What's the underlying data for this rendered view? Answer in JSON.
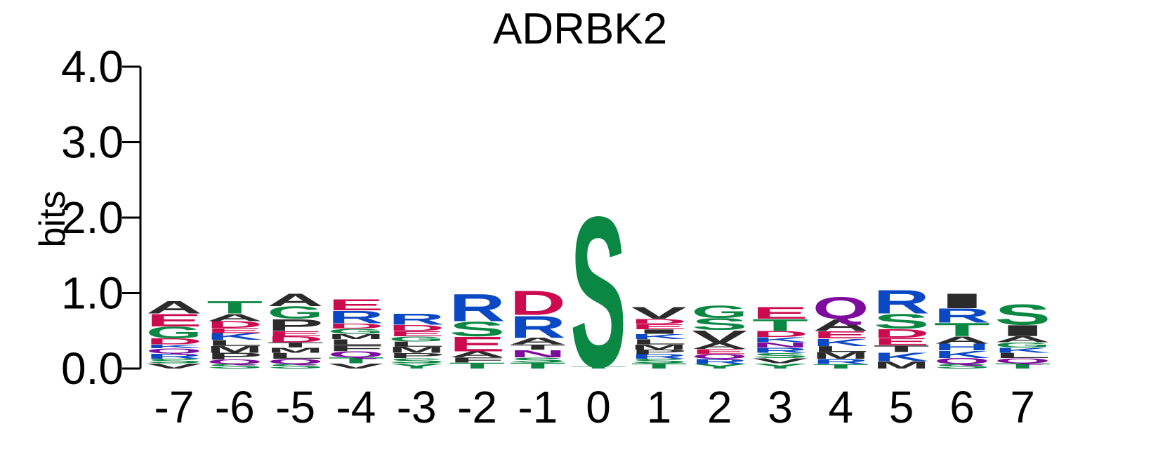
{
  "chart_data": {
    "type": "sequence_logo",
    "title": "ADRBK2",
    "ylabel": "bits",
    "ylim": [
      0,
      4.0
    ],
    "yticks": [
      "0.0",
      "1.0",
      "2.0",
      "3.0",
      "4.0"
    ],
    "colors": {
      "green": "#0a8743",
      "red": "#cc0a4e",
      "blue": "#0b48c4",
      "black": "#2b2b2b",
      "purple": "#7d0b9b"
    },
    "positions": [
      {
        "label": "-7",
        "letters": [
          {
            "c": "V",
            "h": 0.07,
            "col": "black"
          },
          {
            "c": "S",
            "h": 0.06,
            "col": "green"
          },
          {
            "c": "R",
            "h": 0.07,
            "col": "blue"
          },
          {
            "c": "Q",
            "h": 0.07,
            "col": "purple"
          },
          {
            "c": "K",
            "h": 0.05,
            "col": "blue"
          },
          {
            "c": "D",
            "h": 0.08,
            "col": "red"
          },
          {
            "c": "G",
            "h": 0.16,
            "col": "green"
          },
          {
            "c": "E",
            "h": 0.17,
            "col": "red"
          },
          {
            "c": "A",
            "h": 0.17,
            "col": "black"
          }
        ]
      },
      {
        "label": "-6",
        "letters": [
          {
            "c": "S",
            "h": 0.06,
            "col": "green"
          },
          {
            "c": "Q",
            "h": 0.06,
            "col": "purple"
          },
          {
            "c": "P",
            "h": 0.09,
            "col": "black"
          },
          {
            "c": "M",
            "h": 0.09,
            "col": "black"
          },
          {
            "c": "L",
            "h": 0.08,
            "col": "black"
          },
          {
            "c": "K",
            "h": 0.09,
            "col": "blue"
          },
          {
            "c": "E",
            "h": 0.07,
            "col": "red"
          },
          {
            "c": "D",
            "h": 0.09,
            "col": "red"
          },
          {
            "c": "A",
            "h": 0.1,
            "col": "black"
          },
          {
            "c": "T",
            "h": 0.17,
            "col": "green"
          }
        ]
      },
      {
        "label": "-5",
        "letters": [
          {
            "c": "S",
            "h": 0.06,
            "col": "green"
          },
          {
            "c": "Q",
            "h": 0.07,
            "col": "purple"
          },
          {
            "c": "L",
            "h": 0.08,
            "col": "black"
          },
          {
            "c": "M",
            "h": 0.07,
            "col": "black"
          },
          {
            "c": "T",
            "h": 0.07,
            "col": "black"
          },
          {
            "c": "D",
            "h": 0.08,
            "col": "red"
          },
          {
            "c": "E",
            "h": 0.07,
            "col": "red"
          },
          {
            "c": "P",
            "h": 0.16,
            "col": "black"
          },
          {
            "c": "G",
            "h": 0.17,
            "col": "green"
          },
          {
            "c": "A",
            "h": 0.17,
            "col": "black"
          }
        ]
      },
      {
        "label": "-4",
        "letters": [
          {
            "c": "V",
            "h": 0.07,
            "col": "black"
          },
          {
            "c": "T",
            "h": 0.08,
            "col": "green"
          },
          {
            "c": "Q",
            "h": 0.08,
            "col": "purple"
          },
          {
            "c": "F",
            "h": 0.08,
            "col": "black"
          },
          {
            "c": "L",
            "h": 0.08,
            "col": "black"
          },
          {
            "c": "M",
            "h": 0.07,
            "col": "black"
          },
          {
            "c": "G",
            "h": 0.07,
            "col": "green"
          },
          {
            "c": "D",
            "h": 0.07,
            "col": "red"
          },
          {
            "c": "R",
            "h": 0.17,
            "col": "blue"
          },
          {
            "c": "E",
            "h": 0.15,
            "col": "red"
          }
        ]
      },
      {
        "label": "-3",
        "letters": [
          {
            "c": "Y",
            "h": 0.07,
            "col": "green"
          },
          {
            "c": "S",
            "h": 0.07,
            "col": "green"
          },
          {
            "c": "P",
            "h": 0.07,
            "col": "black"
          },
          {
            "c": "M",
            "h": 0.08,
            "col": "black"
          },
          {
            "c": "L",
            "h": 0.07,
            "col": "black"
          },
          {
            "c": "G",
            "h": 0.07,
            "col": "green"
          },
          {
            "c": "E",
            "h": 0.07,
            "col": "red"
          },
          {
            "c": "D",
            "h": 0.08,
            "col": "red"
          },
          {
            "c": "R",
            "h": 0.15,
            "col": "blue"
          }
        ]
      },
      {
        "label": "-2",
        "letters": [
          {
            "c": "T",
            "h": 0.08,
            "col": "green"
          },
          {
            "c": "F",
            "h": 0.07,
            "col": "black"
          },
          {
            "c": "A",
            "h": 0.08,
            "col": "black"
          },
          {
            "c": "E",
            "h": 0.2,
            "col": "red"
          },
          {
            "c": "S",
            "h": 0.2,
            "col": "green"
          },
          {
            "c": "R",
            "h": 0.37,
            "col": "blue"
          }
        ]
      },
      {
        "label": "-1",
        "letters": [
          {
            "c": "T",
            "h": 0.08,
            "col": "green"
          },
          {
            "c": "S",
            "h": 0.07,
            "col": "green"
          },
          {
            "c": "N",
            "h": 0.1,
            "col": "purple"
          },
          {
            "c": "T",
            "h": 0.07,
            "col": "black"
          },
          {
            "c": "A",
            "h": 0.09,
            "col": "black"
          },
          {
            "c": "R",
            "h": 0.3,
            "col": "blue"
          },
          {
            "c": "D",
            "h": 0.33,
            "col": "red"
          }
        ]
      },
      {
        "label": "0",
        "letters": [
          {
            "c": "T",
            "h": 0.03,
            "col": "green"
          },
          {
            "c": "S",
            "h": 2.05,
            "col": "green"
          }
        ]
      },
      {
        "label": "1",
        "letters": [
          {
            "c": "T",
            "h": 0.07,
            "col": "green"
          },
          {
            "c": "S",
            "h": 0.06,
            "col": "green"
          },
          {
            "c": "R",
            "h": 0.06,
            "col": "blue"
          },
          {
            "c": "P",
            "h": 0.06,
            "col": "black"
          },
          {
            "c": "M",
            "h": 0.07,
            "col": "black"
          },
          {
            "c": "L",
            "h": 0.07,
            "col": "black"
          },
          {
            "c": "K",
            "h": 0.07,
            "col": "blue"
          },
          {
            "c": "I",
            "h": 0.06,
            "col": "black"
          },
          {
            "c": "E",
            "h": 0.07,
            "col": "red"
          },
          {
            "c": "D",
            "h": 0.07,
            "col": "red"
          },
          {
            "c": "V",
            "h": 0.16,
            "col": "black"
          }
        ]
      },
      {
        "label": "2",
        "letters": [
          {
            "c": "Y",
            "h": 0.06,
            "col": "green"
          },
          {
            "c": "R",
            "h": 0.07,
            "col": "blue"
          },
          {
            "c": "Q",
            "h": 0.06,
            "col": "purple"
          },
          {
            "c": "E",
            "h": 0.07,
            "col": "red"
          },
          {
            "c": "A",
            "h": 0.08,
            "col": "black"
          },
          {
            "c": "V",
            "h": 0.17,
            "col": "black"
          },
          {
            "c": "S",
            "h": 0.16,
            "col": "green"
          },
          {
            "c": "G",
            "h": 0.17,
            "col": "green"
          }
        ]
      },
      {
        "label": "3",
        "letters": [
          {
            "c": "Y",
            "h": 0.07,
            "col": "green"
          },
          {
            "c": "V",
            "h": 0.07,
            "col": "black"
          },
          {
            "c": "S",
            "h": 0.07,
            "col": "green"
          },
          {
            "c": "R",
            "h": 0.07,
            "col": "blue"
          },
          {
            "c": "N",
            "h": 0.07,
            "col": "purple"
          },
          {
            "c": "K",
            "h": 0.07,
            "col": "blue"
          },
          {
            "c": "D",
            "h": 0.08,
            "col": "red"
          },
          {
            "c": "T",
            "h": 0.16,
            "col": "green"
          },
          {
            "c": "E",
            "h": 0.16,
            "col": "red"
          }
        ]
      },
      {
        "label": "4",
        "letters": [
          {
            "c": "T",
            "h": 0.06,
            "col": "green"
          },
          {
            "c": "R",
            "h": 0.07,
            "col": "blue"
          },
          {
            "c": "M",
            "h": 0.09,
            "col": "black"
          },
          {
            "c": "L",
            "h": 0.08,
            "col": "black"
          },
          {
            "c": "K",
            "h": 0.1,
            "col": "blue"
          },
          {
            "c": "E",
            "h": 0.1,
            "col": "red"
          },
          {
            "c": "A",
            "h": 0.16,
            "col": "black"
          },
          {
            "c": "Q",
            "h": 0.3,
            "col": "purple"
          }
        ]
      },
      {
        "label": "5",
        "letters": [
          {
            "c": "M",
            "h": 0.1,
            "col": "black"
          },
          {
            "c": "K",
            "h": 0.12,
            "col": "blue"
          },
          {
            "c": "T",
            "h": 0.09,
            "col": "black"
          },
          {
            "c": "E",
            "h": 0.1,
            "col": "red"
          },
          {
            "c": "D",
            "h": 0.12,
            "col": "red"
          },
          {
            "c": "S",
            "h": 0.2,
            "col": "green"
          },
          {
            "c": "R",
            "h": 0.32,
            "col": "blue"
          }
        ]
      },
      {
        "label": "6",
        "letters": [
          {
            "c": "S",
            "h": 0.06,
            "col": "green"
          },
          {
            "c": "Q",
            "h": 0.08,
            "col": "purple"
          },
          {
            "c": "K",
            "h": 0.1,
            "col": "blue"
          },
          {
            "c": "H",
            "h": 0.09,
            "col": "blue"
          },
          {
            "c": "A",
            "h": 0.1,
            "col": "black"
          },
          {
            "c": "T",
            "h": 0.18,
            "col": "green"
          },
          {
            "c": "R",
            "h": 0.19,
            "col": "blue"
          },
          {
            "c": "I",
            "h": 0.2,
            "col": "black"
          }
        ]
      },
      {
        "label": "7",
        "letters": [
          {
            "c": "T",
            "h": 0.07,
            "col": "green"
          },
          {
            "c": "Q",
            "h": 0.07,
            "col": "purple"
          },
          {
            "c": "L",
            "h": 0.07,
            "col": "black"
          },
          {
            "c": "K",
            "h": 0.07,
            "col": "blue"
          },
          {
            "c": "G",
            "h": 0.07,
            "col": "green"
          },
          {
            "c": "A",
            "h": 0.08,
            "col": "black"
          },
          {
            "c": "I",
            "h": 0.15,
            "col": "black"
          },
          {
            "c": "S",
            "h": 0.28,
            "col": "green"
          }
        ]
      }
    ]
  }
}
